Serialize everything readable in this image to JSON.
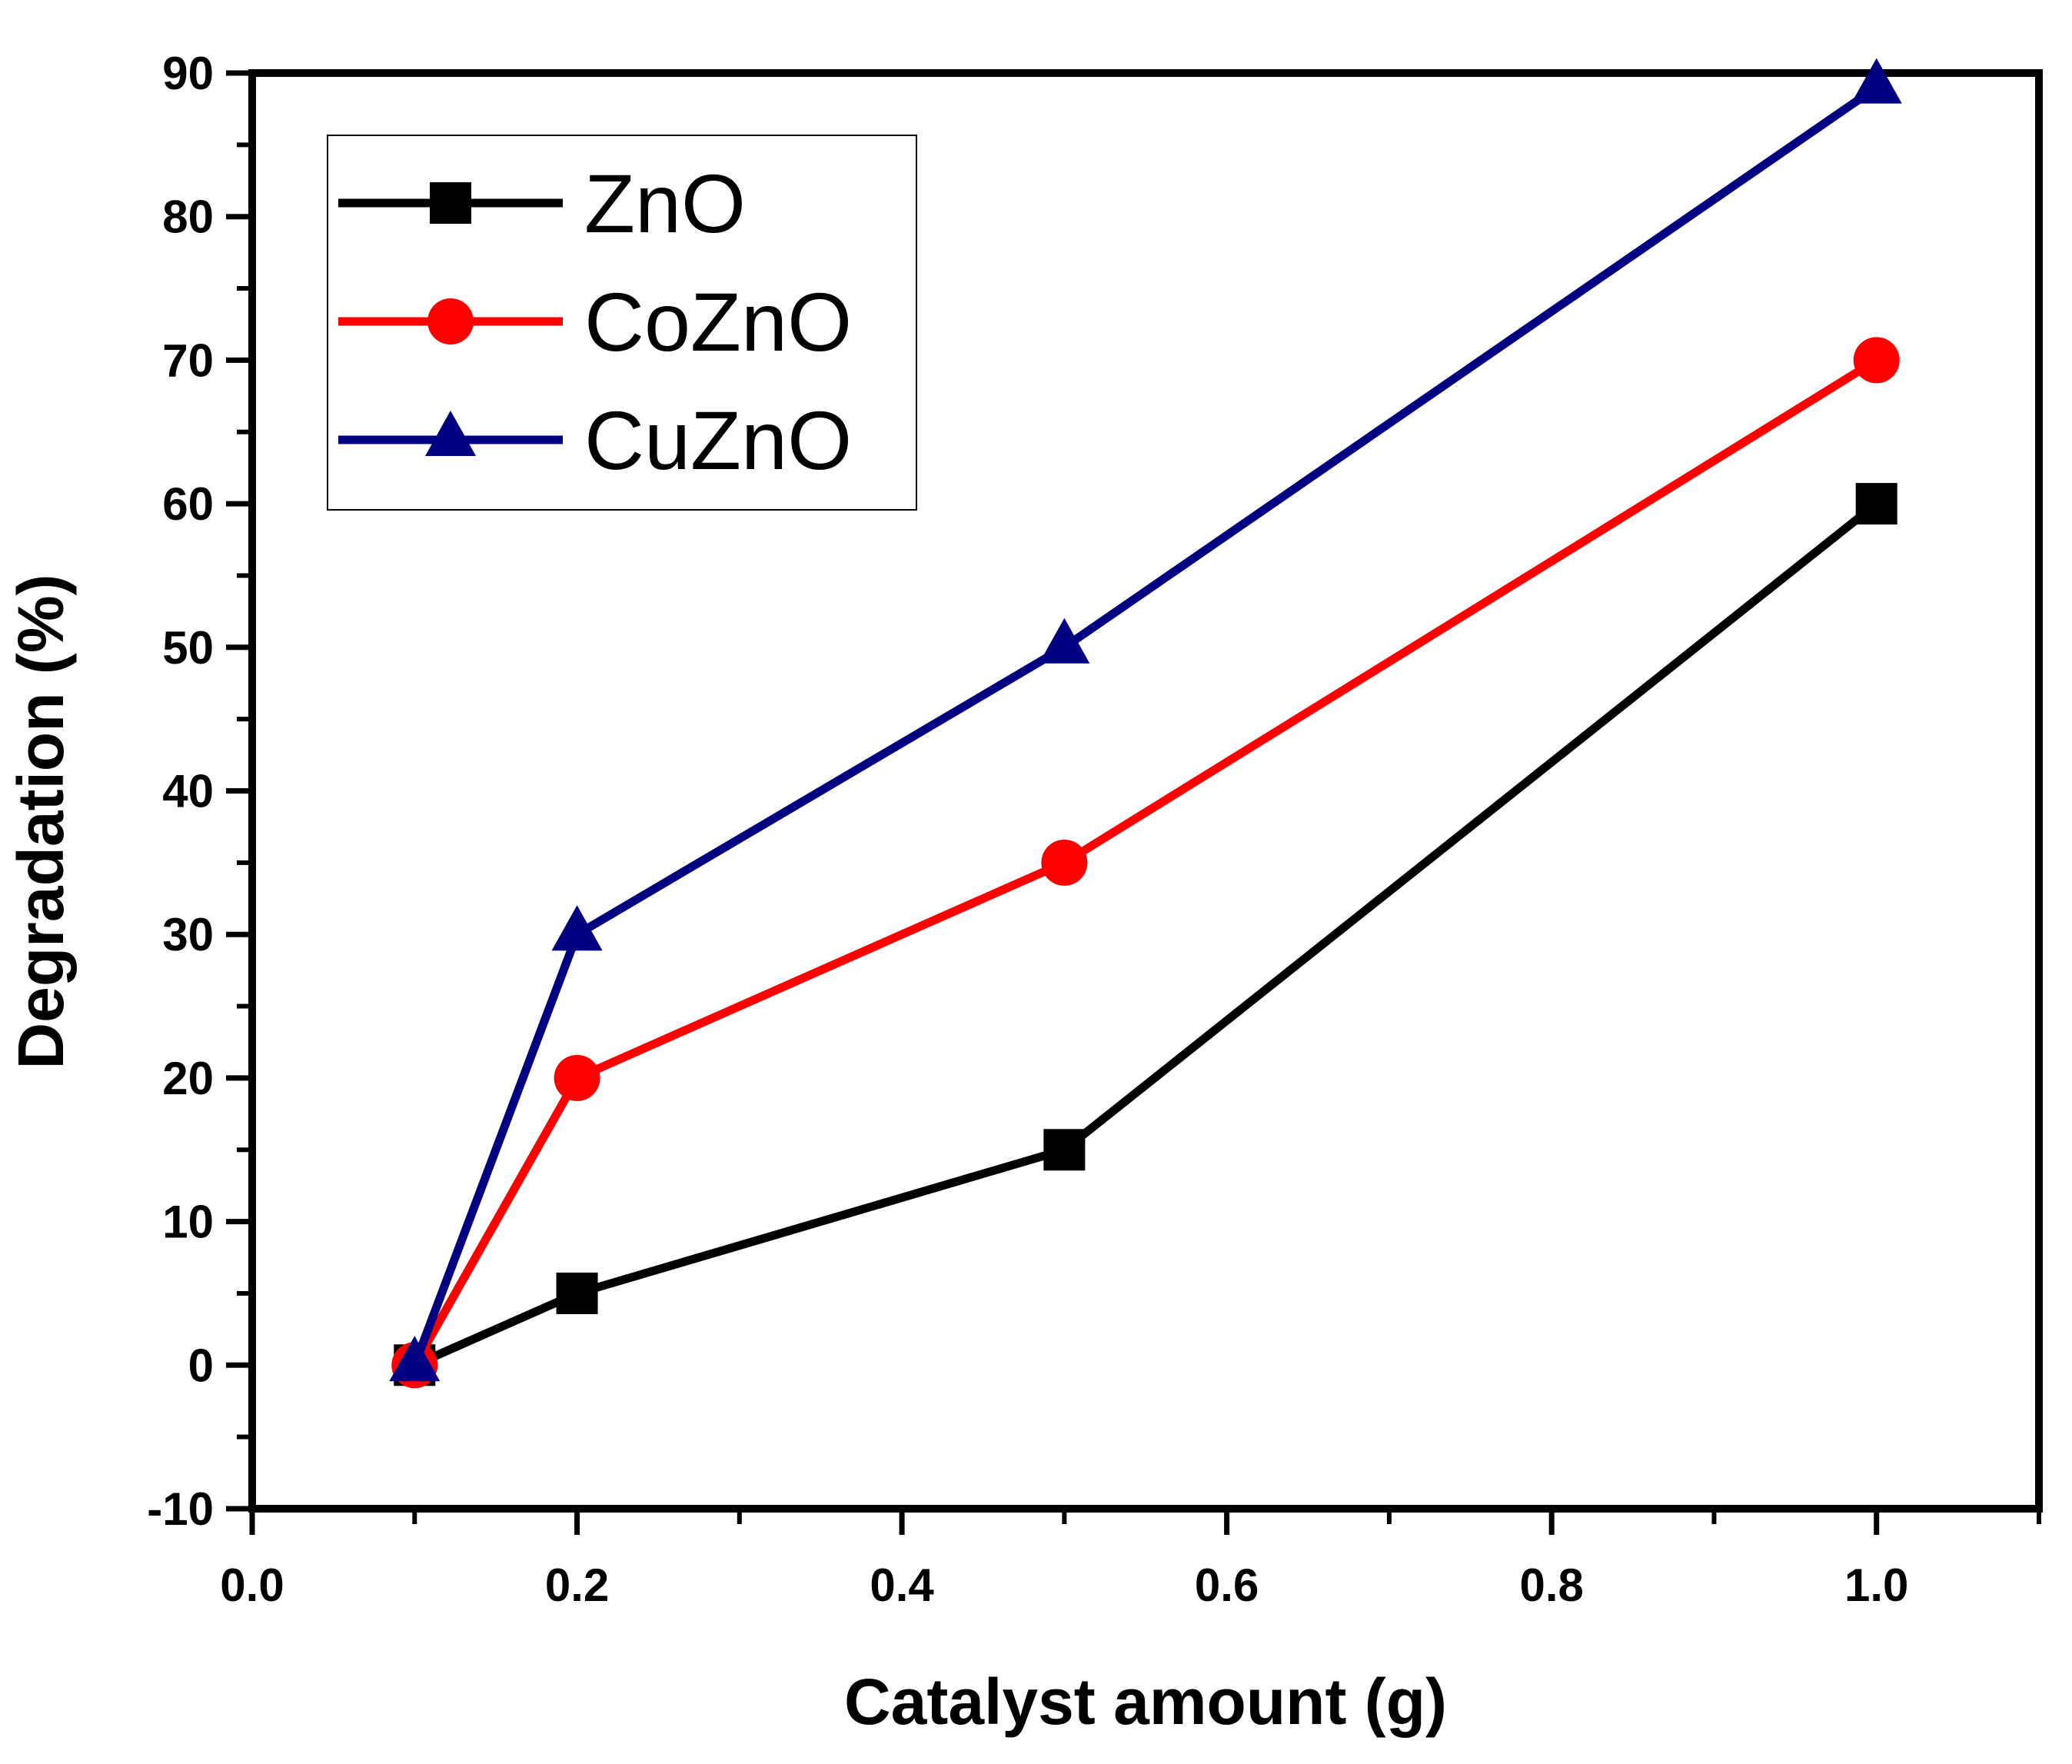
{
  "chart_data": {
    "type": "line",
    "xlabel": "Catalyst amount (g)",
    "ylabel": "Degradation (%)",
    "xlim": [
      0.0,
      1.1
    ],
    "ylim": [
      -10,
      90
    ],
    "x_ticks": [
      {
        "value": 0.0,
        "label": "0.0"
      },
      {
        "value": 0.2,
        "label": "0.2"
      },
      {
        "value": 0.4,
        "label": "0.4"
      },
      {
        "value": 0.6,
        "label": "0.6"
      },
      {
        "value": 0.8,
        "label": "0.8"
      },
      {
        "value": 1.0,
        "label": "1.0"
      }
    ],
    "y_ticks": [
      {
        "value": -10,
        "label": "-10"
      },
      {
        "value": 0,
        "label": "0"
      },
      {
        "value": 10,
        "label": "10"
      },
      {
        "value": 20,
        "label": "20"
      },
      {
        "value": 30,
        "label": "30"
      },
      {
        "value": 40,
        "label": "40"
      },
      {
        "value": 50,
        "label": "50"
      },
      {
        "value": 60,
        "label": "60"
      },
      {
        "value": 70,
        "label": "70"
      },
      {
        "value": 80,
        "label": "80"
      },
      {
        "value": 90,
        "label": "90"
      }
    ],
    "x": [
      0.1,
      0.2,
      0.5,
      1.0
    ],
    "grid": false,
    "legend_position": "top-left",
    "series": [
      {
        "name": "ZnO",
        "values": [
          0,
          5,
          15,
          60
        ],
        "color": "#000000",
        "marker": "square"
      },
      {
        "name": "CoZnO",
        "values": [
          0,
          20,
          35,
          70
        ],
        "color": "#ff0000",
        "marker": "circle"
      },
      {
        "name": "CuZnO",
        "values": [
          0,
          30,
          50,
          89
        ],
        "color": "#000080",
        "marker": "triangle"
      }
    ]
  }
}
